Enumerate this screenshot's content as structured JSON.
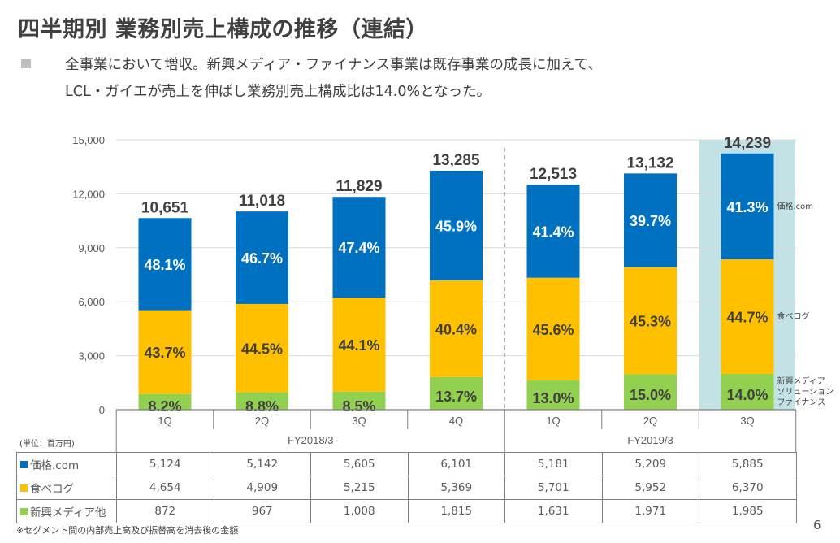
{
  "title": "四半期別 業務別売上構成の推移（連結）",
  "summary": {
    "line1": "全事業において増収。新興メディア・ファイナンス事業は既存事業の成長に加えて、",
    "line2": "LCL・ガイエが売上を伸ばし業務別売上構成比は14.0%となった。"
  },
  "unit_label": "(単位：百万円)",
  "footnote": "※セグメント間の内部売上高及び振替高を消去後の金額",
  "page_number": "6",
  "colors": {
    "kakaku": "#0070c0",
    "tabelog": "#ffc000",
    "new_media": "#92d050",
    "highlight": "#c3e2e6",
    "grid": "#d9d9d9"
  },
  "chart_data": {
    "type": "bar",
    "stacked": true,
    "title": "",
    "xlabel": "",
    "ylabel": "",
    "ylim": [
      0,
      15000
    ],
    "yticks": [
      "0",
      "3,000",
      "6,000",
      "9,000",
      "12,000",
      "15,000"
    ],
    "ytick_values": [
      0,
      3000,
      6000,
      9000,
      12000,
      15000
    ],
    "grid": true,
    "categories": [
      "1Q",
      "2Q",
      "3Q",
      "4Q",
      "1Q",
      "2Q",
      "3Q"
    ],
    "fiscal_years": [
      {
        "label": "FY2018/3",
        "span": 4
      },
      {
        "label": "FY2019/3",
        "span": 3
      }
    ],
    "totals": [
      10651,
      11018,
      11829,
      13285,
      12513,
      13132,
      14239
    ],
    "total_labels": [
      "10,651",
      "11,018",
      "11,829",
      "13,285",
      "12,513",
      "13,132",
      "14,239"
    ],
    "highlight_index": 6,
    "series": [
      {
        "name": "新興メディア他",
        "side_label": [
          "新興メディア",
          "ソリューション",
          "ファイナンス"
        ],
        "values": [
          872,
          967,
          1008,
          1815,
          1631,
          1971,
          1985
        ],
        "value_labels": [
          "872",
          "967",
          "1,008",
          "1,815",
          "1,631",
          "1,971",
          "1,985"
        ],
        "pct_labels": [
          "8.2%",
          "8.8%",
          "8.5%",
          "13.7%",
          "13.0%",
          "15.0%",
          "14.0%"
        ],
        "color": "#92d050"
      },
      {
        "name": "食べログ",
        "side_label": [
          "食べログ"
        ],
        "values": [
          4654,
          4909,
          5215,
          5369,
          5701,
          5952,
          6370
        ],
        "value_labels": [
          "4,654",
          "4,909",
          "5,215",
          "5,369",
          "5,701",
          "5,952",
          "6,370"
        ],
        "pct_labels": [
          "43.7%",
          "44.5%",
          "44.1%",
          "40.4%",
          "45.6%",
          "45.3%",
          "44.7%"
        ],
        "color": "#ffc000"
      },
      {
        "name": "価格.com",
        "side_label": [
          "価格.com"
        ],
        "values": [
          5124,
          5142,
          5605,
          6101,
          5181,
          5209,
          5885
        ],
        "value_labels": [
          "5,124",
          "5,142",
          "5,605",
          "6,101",
          "5,181",
          "5,209",
          "5,885"
        ],
        "pct_labels": [
          "48.1%",
          "46.7%",
          "47.4%",
          "45.9%",
          "41.4%",
          "39.7%",
          "41.3%"
        ],
        "color": "#0070c0"
      }
    ],
    "legend": "table-below"
  },
  "table": {
    "rows": [
      {
        "label": "価格.com",
        "series_index": 2
      },
      {
        "label": "食べログ",
        "series_index": 1
      },
      {
        "label": "新興メディア他",
        "series_index": 0
      }
    ]
  }
}
